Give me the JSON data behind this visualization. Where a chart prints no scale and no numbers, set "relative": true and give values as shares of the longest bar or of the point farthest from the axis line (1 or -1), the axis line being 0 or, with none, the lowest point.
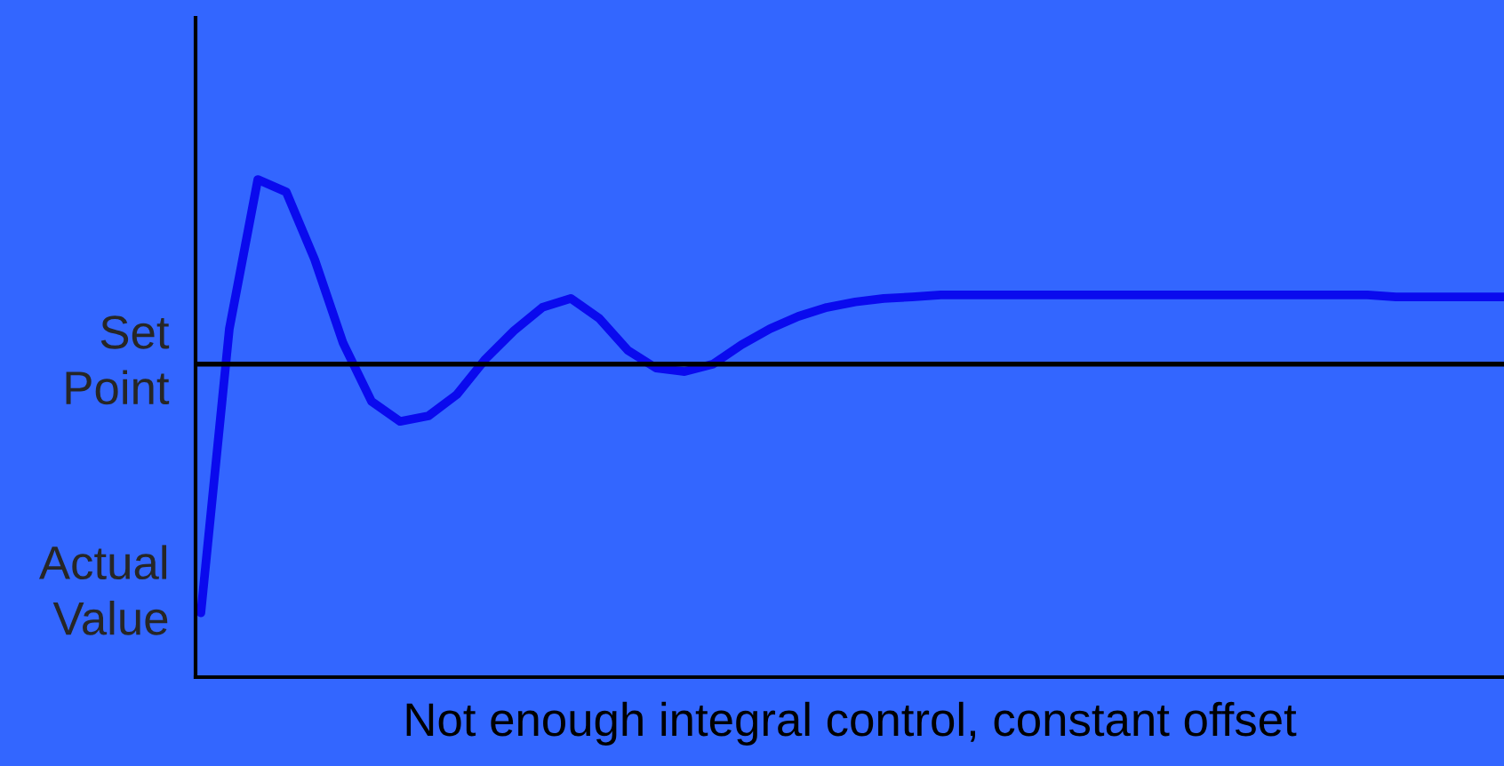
{
  "chart_data": {
    "type": "line",
    "relative": true,
    "xlabel": "Not enough integral control, constant offset",
    "categories": [
      null,
      null,
      null,
      null,
      null,
      null,
      null,
      null,
      null,
      null,
      null,
      null,
      null,
      null,
      null,
      null,
      null,
      null,
      null,
      null,
      null,
      null,
      null,
      null,
      null,
      null,
      null,
      null,
      null,
      null,
      null,
      null,
      null,
      null,
      null,
      null,
      null,
      null,
      null,
      null,
      null,
      null,
      null,
      null,
      null,
      null,
      null
    ],
    "series": [
      {
        "color": "#0a0aee",
        "values": [
          0.129,
          0.7,
          1.0,
          0.975,
          0.839,
          0.671,
          0.554,
          0.514,
          0.525,
          0.568,
          0.639,
          0.696,
          0.743,
          0.761,
          0.721,
          0.657,
          0.621,
          0.614,
          0.629,
          0.668,
          0.7,
          0.725,
          0.743,
          0.754,
          0.761,
          0.764,
          0.768,
          0.768,
          0.768,
          0.768,
          0.768,
          0.768,
          0.768,
          0.768,
          0.768,
          0.768,
          0.768,
          0.768,
          0.768,
          0.768,
          0.768,
          0.768,
          0.764,
          0.764,
          0.764,
          0.764,
          0.764
        ]
      }
    ],
    "ref_lines": [
      {
        "axis": "y",
        "value": 0.629,
        "label": "Set Point",
        "color": "#000000"
      }
    ],
    "annotations": [
      "Actual Value"
    ],
    "line_style": "solid",
    "marker": "none"
  }
}
